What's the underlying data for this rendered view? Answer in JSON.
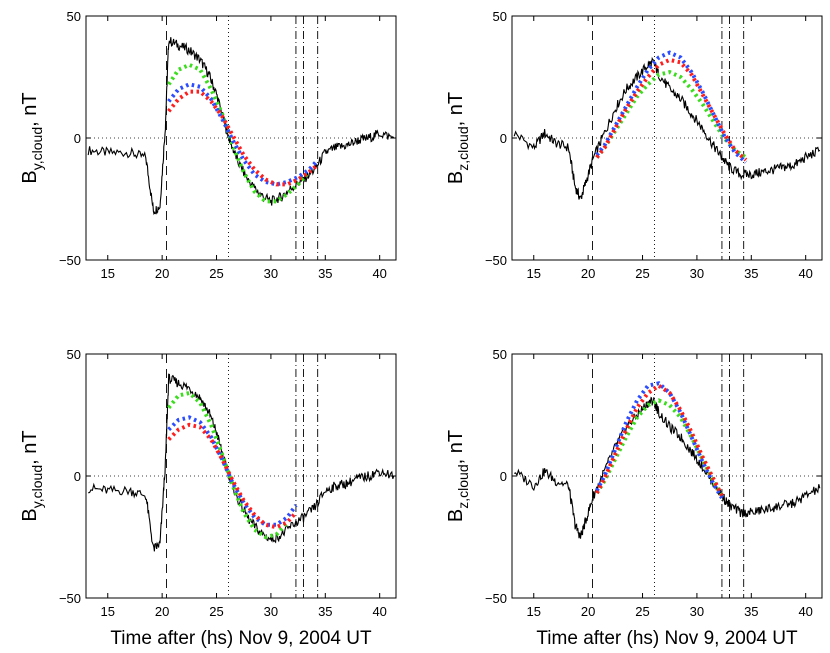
{
  "colors": {
    "black": "#000000",
    "blue": "#2b4cff",
    "red": "#ff1e1e",
    "green": "#3cdc1e"
  },
  "chart_data": [
    {
      "type": "line",
      "ylabel_main": "B",
      "ylabel_sub": "y,cloud",
      "ylabel_unit": "nT",
      "xlabel": "",
      "xlim": [
        13,
        41.5
      ],
      "ylim": [
        -50,
        50
      ],
      "xticks": [
        "15",
        "20",
        "25",
        "30",
        "35",
        "40"
      ],
      "xtick_values": [
        15,
        20,
        25,
        30,
        35,
        40
      ],
      "yticks": [
        "50",
        "0",
        "−50"
      ],
      "ytick_values": [
        50,
        0,
        -50
      ],
      "vlines": {
        "dashed": [
          20.4
        ],
        "dotted": [
          26.1
        ],
        "dashdot": [
          32.3,
          33.0,
          34.3
        ]
      },
      "zero_line": true,
      "observed": {
        "x": [
          13.2,
          15,
          17,
          18.5,
          19.2,
          19.8,
          20.3,
          20.6,
          21.5,
          22.5,
          23.5,
          24.3,
          25,
          25.8,
          26.3,
          27,
          28,
          29,
          30,
          31,
          32,
          33,
          34,
          35,
          36,
          37,
          38,
          39,
          40,
          41.3
        ],
        "y": [
          -5,
          -6,
          -6,
          -8,
          -30,
          -28,
          5,
          40,
          38,
          36,
          32,
          26,
          18,
          5,
          -2,
          -10,
          -18,
          -23,
          -26,
          -24,
          -20,
          -17,
          -13,
          -6,
          -4,
          -3,
          -1,
          0,
          2,
          0
        ]
      },
      "series": [
        {
          "name": "green",
          "x": [
            20.6,
            21.5,
            22.5,
            23.5,
            24.5,
            25.5,
            26.5,
            27.5,
            28.5,
            29.5,
            30.5,
            31.5,
            32.5,
            33.3
          ],
          "y": [
            22,
            28,
            30,
            28,
            20,
            10,
            -3,
            -14,
            -22,
            -26,
            -26,
            -23,
            -19,
            -15
          ]
        },
        {
          "name": "blue",
          "x": [
            20.6,
            21.5,
            22.5,
            23.5,
            24.5,
            25.5,
            26.5,
            27.5,
            28.5,
            29.5,
            30.5,
            31.5,
            32.5,
            33.5,
            34.3
          ],
          "y": [
            15,
            20,
            22,
            21,
            16,
            8,
            -1,
            -9,
            -15,
            -18,
            -19,
            -18,
            -16,
            -13,
            -9
          ]
        },
        {
          "name": "red",
          "x": [
            20.6,
            21.5,
            22.5,
            23.5,
            24.5,
            25.5,
            26.5,
            27.5,
            28.5,
            29.5,
            30.5,
            31.5,
            32.5,
            33.5,
            34.3
          ],
          "y": [
            11,
            16,
            19,
            19,
            15,
            9,
            1,
            -7,
            -13,
            -17,
            -19,
            -19,
            -17,
            -14,
            -11
          ]
        }
      ]
    },
    {
      "type": "line",
      "ylabel_main": "B",
      "ylabel_sub": "z,cloud",
      "ylabel_unit": "nT",
      "xlabel": "",
      "xlim": [
        13,
        41.5
      ],
      "ylim": [
        -50,
        50
      ],
      "xticks": [
        "15",
        "20",
        "25",
        "30",
        "35",
        "40"
      ],
      "xtick_values": [
        15,
        20,
        25,
        30,
        35,
        40
      ],
      "yticks": [
        "50",
        "0",
        "−50"
      ],
      "ytick_values": [
        50,
        0,
        -50
      ],
      "vlines": {
        "dashed": [
          20.4
        ],
        "dotted": [
          26.1
        ],
        "dashdot": [
          32.3,
          33.0,
          34.3
        ]
      },
      "zero_line": true,
      "observed": {
        "x": [
          13.2,
          15,
          16,
          17,
          18.2,
          18.8,
          19.3,
          19.8,
          20.5,
          21.5,
          22.5,
          23.5,
          24.5,
          25.5,
          26,
          26.5,
          27.5,
          28.5,
          29.5,
          30.5,
          31.5,
          32.3,
          33,
          34,
          35,
          36,
          37,
          38,
          39,
          40,
          41.3
        ],
        "y": [
          2,
          -4,
          2,
          -2,
          -4,
          -20,
          -25,
          -18,
          -8,
          2,
          12,
          20,
          25,
          30,
          31,
          26,
          20,
          16,
          10,
          4,
          -3,
          -8,
          -12,
          -15,
          -15,
          -14,
          -13,
          -12,
          -11,
          -8,
          -5
        ]
      },
      "series": [
        {
          "name": "green",
          "x": [
            20.8,
            21.5,
            22.5,
            23.5,
            24.5,
            25.5,
            26.5,
            27.5,
            28.5,
            29.5,
            30.5,
            31.5,
            32.5,
            33.5,
            34.5
          ],
          "y": [
            -8,
            -4,
            3,
            10,
            17,
            22,
            26,
            27,
            25,
            20,
            14,
            7,
            0,
            -5,
            -8
          ]
        },
        {
          "name": "blue",
          "x": [
            20.8,
            21.5,
            22.5,
            23.5,
            24.5,
            25.5,
            26.5,
            27.5,
            28.5,
            29.5,
            30.5,
            31.5,
            32.5,
            33.5,
            34.5
          ],
          "y": [
            -7,
            -3,
            5,
            13,
            21,
            28,
            33,
            35,
            33,
            27,
            19,
            10,
            1,
            -6,
            -10
          ]
        },
        {
          "name": "red",
          "x": [
            20.8,
            21.5,
            22.5,
            23.5,
            24.5,
            25.5,
            26.5,
            27.5,
            28.5,
            29.5,
            30.5,
            31.5,
            32.5,
            33.5,
            34.5
          ],
          "y": [
            -8,
            -4,
            4,
            12,
            19,
            25,
            30,
            32,
            31,
            26,
            18,
            10,
            2,
            -5,
            -9
          ]
        }
      ]
    },
    {
      "type": "line",
      "ylabel_main": "B",
      "ylabel_sub": "y,cloud",
      "ylabel_unit": "nT",
      "xlabel": "Time after (hs) Nov 9, 2004 UT",
      "xlim": [
        13,
        41.5
      ],
      "ylim": [
        -50,
        50
      ],
      "xticks": [
        "15",
        "20",
        "25",
        "30",
        "35",
        "40"
      ],
      "xtick_values": [
        15,
        20,
        25,
        30,
        35,
        40
      ],
      "yticks": [
        "50",
        "0",
        "−50"
      ],
      "ytick_values": [
        50,
        0,
        -50
      ],
      "vlines": {
        "dashed": [
          20.4
        ],
        "dotted": [
          26.1
        ],
        "dashdot": [
          32.3,
          33.0,
          34.3
        ]
      },
      "zero_line": true,
      "observed": {
        "x": [
          13.2,
          15,
          17,
          18.5,
          19.2,
          19.8,
          20.3,
          20.6,
          21.5,
          22.5,
          23.5,
          24.3,
          25,
          25.8,
          26.3,
          27,
          28,
          29,
          30,
          31,
          32,
          33,
          34,
          35,
          36,
          37,
          38,
          39,
          40,
          41.3
        ],
        "y": [
          -5,
          -6,
          -6,
          -8,
          -30,
          -28,
          5,
          40,
          38,
          36,
          32,
          26,
          18,
          5,
          -2,
          -10,
          -18,
          -23,
          -26,
          -24,
          -20,
          -17,
          -13,
          -6,
          -4,
          -3,
          -1,
          0,
          2,
          0
        ]
      },
      "series": [
        {
          "name": "green",
          "x": [
            20.6,
            21.5,
            22.5,
            23.5,
            24.5,
            25.5,
            26.5,
            27.5,
            28.5,
            29.5,
            30.5,
            31.5
          ],
          "y": [
            28,
            33,
            34,
            30,
            21,
            9,
            -4,
            -15,
            -22,
            -25,
            -24,
            -19
          ]
        },
        {
          "name": "blue",
          "x": [
            20.6,
            21.5,
            22.5,
            23.5,
            24.5,
            25.5,
            26.5,
            27.5,
            28.5,
            29.5,
            30.5,
            31.5,
            32.3
          ],
          "y": [
            19,
            23,
            24,
            22,
            16,
            7,
            -3,
            -11,
            -17,
            -20,
            -20,
            -17,
            -12
          ]
        },
        {
          "name": "red",
          "x": [
            20.6,
            21.5,
            22.5,
            23.5,
            24.5,
            25.5,
            26.5,
            27.5,
            28.5,
            29.5,
            30.5,
            31.5,
            32.3
          ],
          "y": [
            15,
            19,
            21,
            20,
            15,
            7,
            -2,
            -10,
            -16,
            -20,
            -21,
            -19,
            -15
          ]
        }
      ]
    },
    {
      "type": "line",
      "ylabel_main": "B",
      "ylabel_sub": "z,cloud",
      "ylabel_unit": "nT",
      "xlabel": "Time after (hs) Nov 9, 2004 UT",
      "xlim": [
        13,
        41.5
      ],
      "ylim": [
        -50,
        50
      ],
      "xticks": [
        "15",
        "20",
        "25",
        "30",
        "35",
        "40"
      ],
      "xtick_values": [
        15,
        20,
        25,
        30,
        35,
        40
      ],
      "yticks": [
        "50",
        "0",
        "−50"
      ],
      "ytick_values": [
        50,
        0,
        -50
      ],
      "vlines": {
        "dashed": [
          20.4
        ],
        "dotted": [
          26.1
        ],
        "dashdot": [
          32.3,
          33.0,
          34.3
        ]
      },
      "zero_line": true,
      "observed": {
        "x": [
          13.2,
          15,
          16,
          17,
          18.2,
          18.8,
          19.3,
          19.8,
          20.5,
          21.5,
          22.5,
          23.5,
          24.5,
          25.5,
          26,
          26.5,
          27.5,
          28.5,
          29.5,
          30.5,
          31.5,
          32.3,
          33,
          34,
          35,
          36,
          37,
          38,
          39,
          40,
          41.3
        ],
        "y": [
          2,
          -4,
          2,
          -2,
          -4,
          -20,
          -25,
          -18,
          -8,
          2,
          12,
          20,
          25,
          30,
          31,
          26,
          20,
          16,
          10,
          4,
          -3,
          -8,
          -12,
          -15,
          -15,
          -14,
          -13,
          -12,
          -11,
          -8,
          -5
        ]
      },
      "series": [
        {
          "name": "green",
          "x": [
            20.8,
            21.5,
            22.5,
            23.5,
            24.5,
            25.5,
            26.5,
            27.5,
            28.5,
            29.5,
            30.5,
            31.5,
            32.3
          ],
          "y": [
            -7,
            -2,
            7,
            16,
            24,
            29,
            31,
            29,
            24,
            16,
            7,
            -2,
            -8
          ]
        },
        {
          "name": "blue",
          "x": [
            20.8,
            21.5,
            22.5,
            23.5,
            24.5,
            25.5,
            26.5,
            27.5,
            28.5,
            29.5,
            30.5,
            31.5,
            32.3
          ],
          "y": [
            -6,
            0,
            11,
            22,
            31,
            37,
            38,
            34,
            26,
            16,
            6,
            -3,
            -9
          ]
        },
        {
          "name": "red",
          "x": [
            20.8,
            21.5,
            22.5,
            23.5,
            24.5,
            25.5,
            26.5,
            27.5,
            28.5,
            29.5,
            30.5,
            31.5,
            32.3
          ],
          "y": [
            -7,
            -1,
            9,
            19,
            28,
            34,
            37,
            34,
            27,
            18,
            8,
            -1,
            -8
          ]
        }
      ]
    }
  ]
}
